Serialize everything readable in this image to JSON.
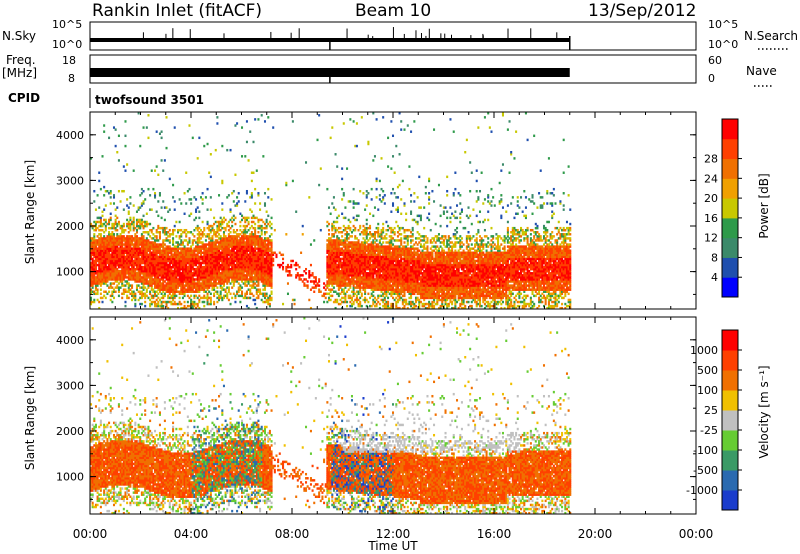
{
  "header": {
    "station": "Rankin Inlet (fitACF)",
    "beam": "Beam 10",
    "date": "13/Sep/2012"
  },
  "summary_panels": {
    "nsky_label": "N.Sky",
    "nsearch_label": "N.Search",
    "freq_label_1": "Freq.",
    "freq_label_2": "[MHz]",
    "nave_label": "Nave",
    "cpid_label": "CPID",
    "cpid_value": "twofsound 3501",
    "nsky_ticks": [
      "10^5",
      "10^0"
    ],
    "nsearch_ticks": [
      "10^5",
      "10^0"
    ],
    "freq_ticks": [
      "18",
      "8"
    ],
    "nave_ticks": [
      "60",
      "0"
    ]
  },
  "colors": {
    "power_scale": [
      "#0000ff",
      "#1f4fae",
      "#3b8a6a",
      "#2e9a4a",
      "#c8c800",
      "#f0a000",
      "#f07000",
      "#ff4000",
      "#ff0000"
    ],
    "velocity_scale": [
      "#1a3ccc",
      "#2a6ab0",
      "#3a9a66",
      "#66cc33",
      "#c0c0c0",
      "#f0c000",
      "#f07000",
      "#ff4000",
      "#ff0000"
    ]
  },
  "chart_data": [
    {
      "type": "heatmap",
      "title": "",
      "xlabel": "Time UT",
      "ylabel": "Slant Range [km]",
      "x_ticks": [
        "00:00",
        "04:00",
        "08:00",
        "12:00",
        "16:00",
        "20:00",
        "00:00"
      ],
      "xlim": [
        0,
        24
      ],
      "ylim": [
        180,
        4500
      ],
      "y_ticks": [
        1000,
        2000,
        3000,
        4000
      ],
      "colorbar_label": "Power [dB]",
      "colorbar_ticks": [
        "4",
        "8",
        "12",
        "16",
        "20",
        "24",
        "28"
      ],
      "data_extent_hours": [
        0,
        19
      ]
    },
    {
      "type": "heatmap",
      "title": "",
      "xlabel": "Time UT",
      "ylabel": "Slant Range [km]",
      "x_ticks": [
        "00:00",
        "04:00",
        "08:00",
        "12:00",
        "16:00",
        "20:00",
        "00:00"
      ],
      "xlim": [
        0,
        24
      ],
      "ylim": [
        180,
        4500
      ],
      "y_ticks": [
        1000,
        2000,
        3000,
        4000
      ],
      "colorbar_label": "Velocity [m s⁻¹]",
      "colorbar_ticks": [
        "1000",
        "500",
        "100",
        "25",
        "-25",
        "-100",
        "-500",
        "-1000"
      ],
      "data_extent_hours": [
        0,
        19
      ]
    }
  ]
}
